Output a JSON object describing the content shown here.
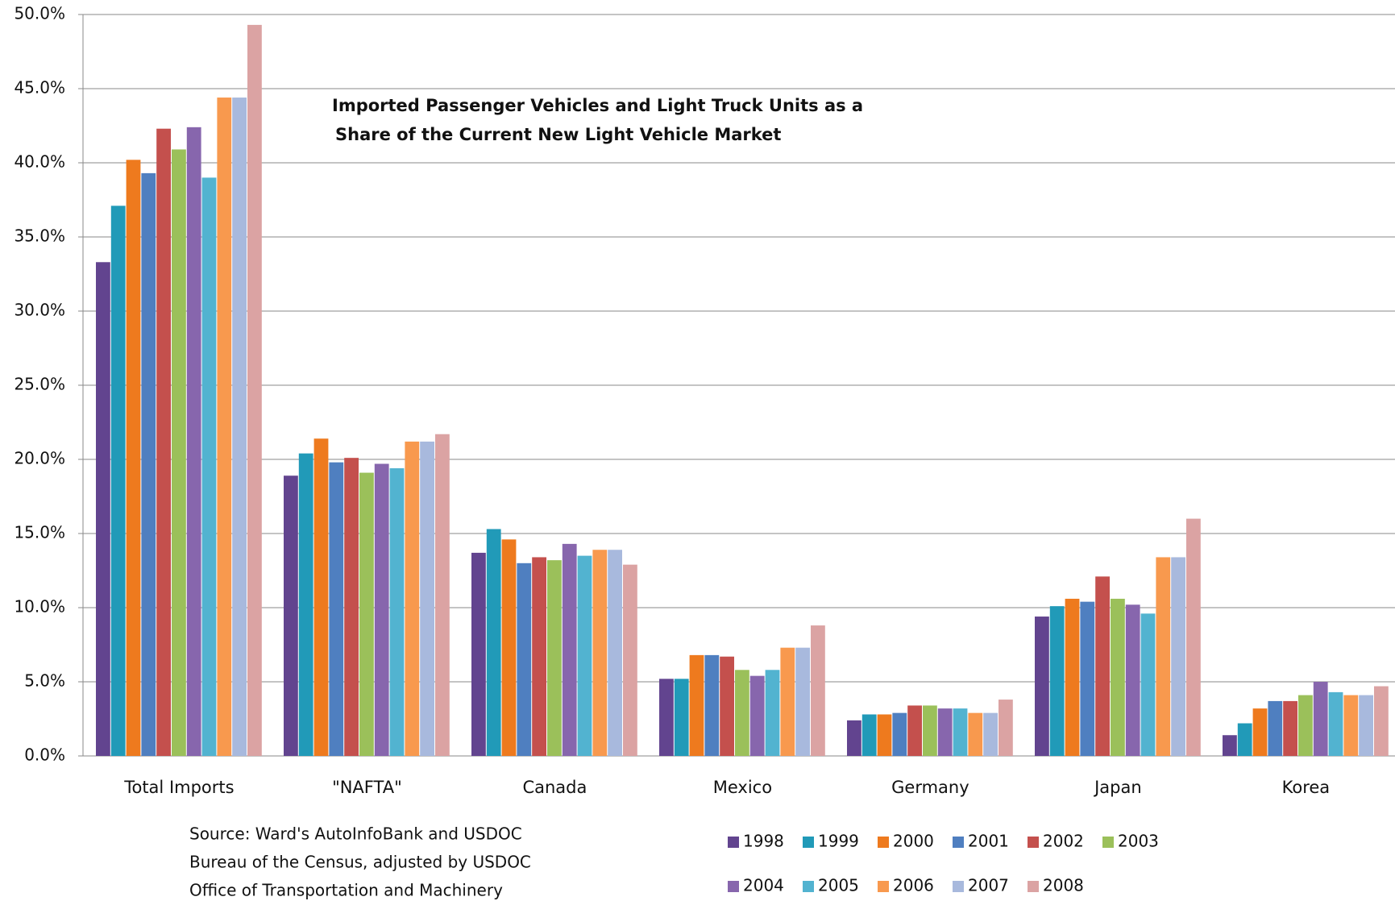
{
  "chart_data": {
    "type": "bar",
    "title_lines": [
      "Imported Passenger Vehicles and Light Truck Units as a",
      "Share of the Current New Light Vehicle Market"
    ],
    "source_lines": [
      "Source: Ward's AutoInfoBank and USDOC",
      "Bureau of the Census,  adjusted by USDOC",
      "Office of  Transportation  and  Machinery"
    ],
    "categories": [
      "Total Imports",
      "\"NAFTA\"",
      "Canada",
      "Mexico",
      "Germany",
      "Japan",
      "Korea"
    ],
    "series": [
      {
        "name": "1998",
        "color": "#62448f",
        "values": [
          33.3,
          18.9,
          13.7,
          5.2,
          2.4,
          9.4,
          1.4
        ]
      },
      {
        "name": "1999",
        "color": "#219ab8",
        "values": [
          37.1,
          20.4,
          15.3,
          5.2,
          2.8,
          10.1,
          2.2
        ]
      },
      {
        "name": "2000",
        "color": "#ee7a1e",
        "values": [
          40.2,
          21.4,
          14.6,
          6.8,
          2.8,
          10.6,
          3.2
        ]
      },
      {
        "name": "2001",
        "color": "#4f7fc0",
        "values": [
          39.3,
          19.8,
          13.0,
          6.8,
          2.9,
          10.4,
          3.7
        ]
      },
      {
        "name": "2002",
        "color": "#c4504d",
        "values": [
          42.3,
          20.1,
          13.4,
          6.7,
          3.4,
          12.1,
          3.7
        ]
      },
      {
        "name": "2003",
        "color": "#9bc05a",
        "values": [
          40.9,
          19.1,
          13.2,
          5.8,
          3.4,
          10.6,
          4.1
        ]
      },
      {
        "name": "2004",
        "color": "#8766ad",
        "values": [
          42.4,
          19.7,
          14.3,
          5.4,
          3.2,
          10.2,
          5.0
        ]
      },
      {
        "name": "2005",
        "color": "#52b3d0",
        "values": [
          39.0,
          19.4,
          13.5,
          5.8,
          3.2,
          9.6,
          4.3
        ]
      },
      {
        "name": "2006",
        "color": "#f8994e",
        "values": [
          44.4,
          21.2,
          13.9,
          7.3,
          2.9,
          13.4,
          4.1
        ]
      },
      {
        "name": "2007",
        "color": "#a8b9dd",
        "values": [
          44.4,
          21.2,
          13.9,
          7.3,
          2.9,
          13.4,
          4.1
        ]
      },
      {
        "name": "2008",
        "color": "#dba3a3",
        "values": [
          49.3,
          21.7,
          12.9,
          8.8,
          3.8,
          16.0,
          4.7
        ]
      }
    ],
    "ylim": [
      0,
      50
    ],
    "yticks": [
      {
        "value": 0,
        "label": "0.0%"
      },
      {
        "value": 5,
        "label": "5.0%"
      },
      {
        "value": 10,
        "label": "10.0%"
      },
      {
        "value": 15,
        "label": "15.0%"
      },
      {
        "value": 20,
        "label": "20.0%"
      },
      {
        "value": 25,
        "label": "25.0%"
      },
      {
        "value": 30,
        "label": "30.0%"
      },
      {
        "value": 35,
        "label": "35.0%"
      },
      {
        "value": 40,
        "label": "40.0%"
      },
      {
        "value": 45,
        "label": "45.0%"
      },
      {
        "value": 50,
        "label": "50.0%"
      }
    ],
    "grid": true
  }
}
